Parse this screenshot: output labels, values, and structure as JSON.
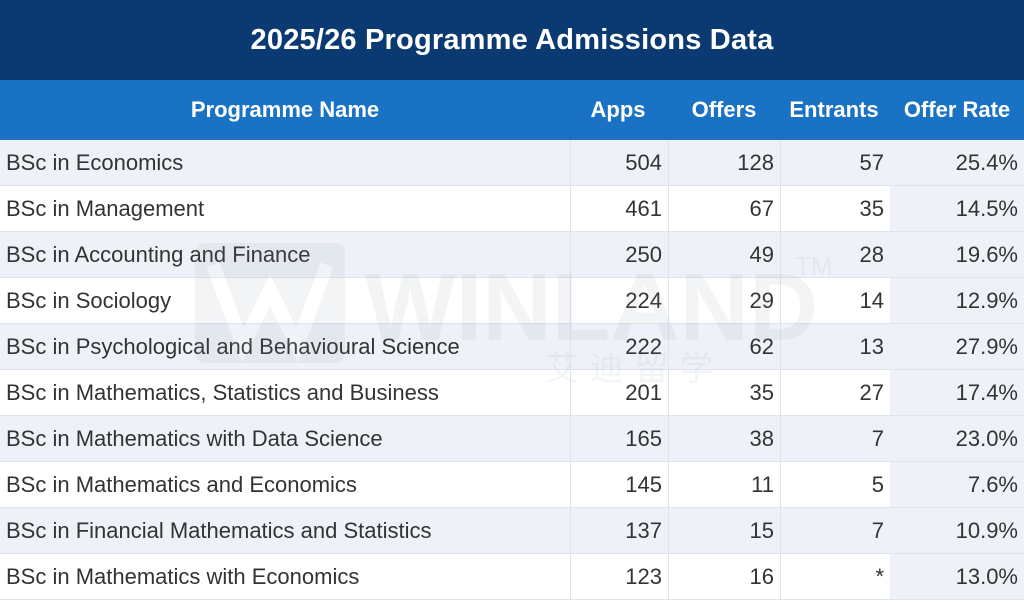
{
  "chart_data": {
    "type": "table",
    "title": "2025/26 Programme Admissions Data",
    "columns": [
      "Programme Name",
      "Apps",
      "Offers",
      "Entrants",
      "Offer Rate"
    ],
    "rows": [
      {
        "name": "BSc in Economics",
        "apps": "504",
        "offers": "128",
        "entrants": "57",
        "rate": "25.4%"
      },
      {
        "name": "BSc in Management",
        "apps": "461",
        "offers": "67",
        "entrants": "35",
        "rate": "14.5%"
      },
      {
        "name": "BSc in Accounting and Finance",
        "apps": "250",
        "offers": "49",
        "entrants": "28",
        "rate": "19.6%"
      },
      {
        "name": "BSc in Sociology",
        "apps": "224",
        "offers": "29",
        "entrants": "14",
        "rate": "12.9%"
      },
      {
        "name": "BSc in Psychological and Behavioural Science",
        "apps": "222",
        "offers": "62",
        "entrants": "13",
        "rate": "27.9%"
      },
      {
        "name": "BSc in Mathematics, Statistics and Business",
        "apps": "201",
        "offers": "35",
        "entrants": "27",
        "rate": "17.4%"
      },
      {
        "name": "BSc in Mathematics with Data Science",
        "apps": "165",
        "offers": "38",
        "entrants": "7",
        "rate": "23.0%"
      },
      {
        "name": "BSc in Mathematics and Economics",
        "apps": "145",
        "offers": "11",
        "entrants": "5",
        "rate": "7.6%"
      },
      {
        "name": "BSc in Financial Mathematics and Statistics",
        "apps": "137",
        "offers": "15",
        "entrants": "7",
        "rate": "10.9%"
      },
      {
        "name": "BSc in Mathematics with Economics",
        "apps": "123",
        "offers": "16",
        "entrants": "*",
        "rate": "13.0%"
      }
    ]
  },
  "watermark": {
    "brand": "WINLAND",
    "trademark": "TM",
    "chinese": "艾 迪 留 学"
  },
  "colors": {
    "title_bg": "#0b3a72",
    "header_bg": "#1a72c4",
    "alt_row_bg": "#eef2f8"
  }
}
